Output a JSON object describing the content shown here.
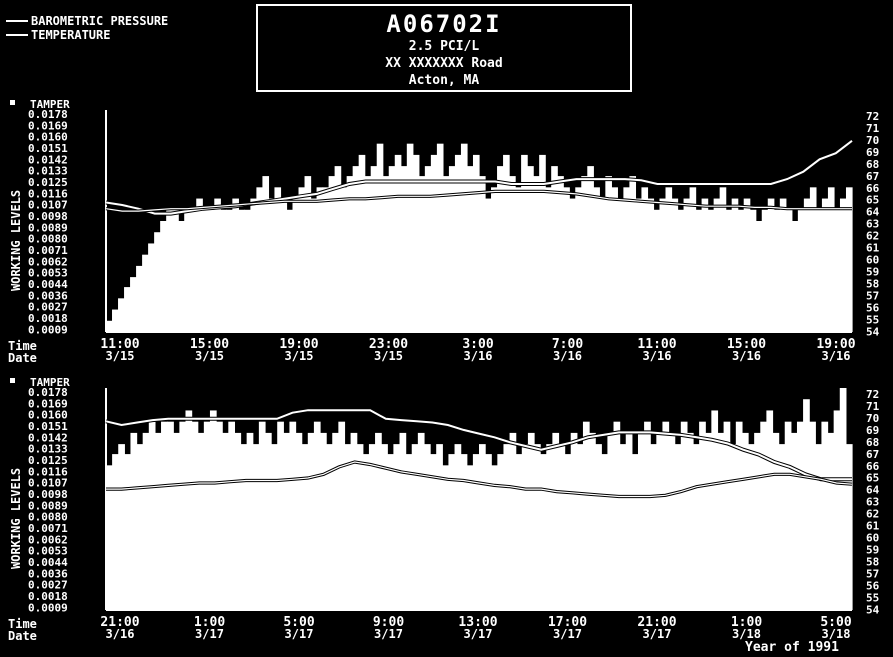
{
  "legend": {
    "items": [
      "BAROMETRIC PRESSURE",
      "TEMPERATURE"
    ]
  },
  "header": {
    "id": "A06702I",
    "concentration": "2.5 PCI/L",
    "address": "XX XXXXXXX Road",
    "location": "Acton, MA"
  },
  "footer": {
    "year": "Year of 1991"
  },
  "chart_data": [
    {
      "type": "bar",
      "tamper_label": "TAMPER",
      "ylabel": "WORKING LEVELS",
      "y_ticks": [
        "0.0178",
        "0.0169",
        "0.0160",
        "0.0151",
        "0.0142",
        "0.0133",
        "0.0125",
        "0.0116",
        "0.0107",
        "0.0098",
        "0.0089",
        "0.0080",
        "0.0071",
        "0.0062",
        "0.0053",
        "0.0044",
        "0.0036",
        "0.0027",
        "0.0018",
        "0.0009"
      ],
      "right_ticks": [
        "72",
        "71",
        "70",
        "69",
        "68",
        "67",
        "66",
        "65",
        "64",
        "63",
        "62",
        "61",
        "60",
        "59",
        "58",
        "57",
        "56",
        "55",
        "54"
      ],
      "row_labels": [
        "Time",
        "Date"
      ],
      "x_times": [
        "11:00",
        "15:00",
        "19:00",
        "23:00",
        "3:00",
        "7:00",
        "11:00",
        "15:00",
        "19:00"
      ],
      "x_dates": [
        "3/15",
        "3/15",
        "3/15",
        "3/15",
        "3/16",
        "3/16",
        "3/16",
        "3/16",
        "3/16"
      ],
      "ylim": [
        0,
        0.0178
      ],
      "working_levels": [
        0.0009,
        0.0018,
        0.0027,
        0.0036,
        0.0044,
        0.0053,
        0.0062,
        0.0071,
        0.008,
        0.0089,
        0.0098,
        0.0098,
        0.0089,
        0.0098,
        0.0098,
        0.0107,
        0.0098,
        0.0098,
        0.0107,
        0.0098,
        0.0098,
        0.0107,
        0.0098,
        0.0098,
        0.0107,
        0.0116,
        0.0125,
        0.0107,
        0.0116,
        0.0107,
        0.0098,
        0.0107,
        0.0116,
        0.0125,
        0.0107,
        0.0116,
        0.0116,
        0.0125,
        0.0133,
        0.0116,
        0.0125,
        0.0133,
        0.0142,
        0.0125,
        0.0133,
        0.0151,
        0.0125,
        0.0133,
        0.0142,
        0.0133,
        0.0151,
        0.0142,
        0.0125,
        0.0133,
        0.0142,
        0.0151,
        0.0125,
        0.0133,
        0.0142,
        0.0151,
        0.0133,
        0.0142,
        0.0125,
        0.0107,
        0.0116,
        0.0133,
        0.0142,
        0.0125,
        0.0116,
        0.0142,
        0.0133,
        0.0125,
        0.0142,
        0.0116,
        0.0133,
        0.0125,
        0.0116,
        0.0107,
        0.0116,
        0.0125,
        0.0133,
        0.0116,
        0.0107,
        0.0125,
        0.0116,
        0.0107,
        0.0116,
        0.0125,
        0.0107,
        0.0116,
        0.0107,
        0.0098,
        0.0107,
        0.0116,
        0.0107,
        0.0098,
        0.0107,
        0.0116,
        0.0098,
        0.0107,
        0.0098,
        0.0107,
        0.0116,
        0.0098,
        0.0107,
        0.0098,
        0.0107,
        0.0098,
        0.0089,
        0.0098,
        0.0107,
        0.0098,
        0.0107,
        0.0098,
        0.0089,
        0.0098,
        0.0107,
        0.0116,
        0.0098,
        0.0107,
        0.0116,
        0.0098,
        0.0107,
        0.0116
      ],
      "barometric_pressure": [
        64.5,
        64.3,
        64.0,
        63.6,
        63.6,
        63.8,
        64.0,
        64.1,
        64.2,
        64.4,
        64.6,
        64.8,
        65.0,
        65.2,
        65.6,
        66.0,
        66.2,
        66.2,
        66.2,
        66.2,
        66.2,
        66.2,
        66.2,
        66.2,
        66.2,
        66.0,
        66.0,
        66.0,
        66.2,
        66.4,
        66.4,
        66.4,
        66.4,
        66.3,
        66.0,
        66.0,
        66.0,
        66.0,
        66.0,
        66.0,
        66.0,
        66.0,
        66.4,
        67.0,
        68.0,
        68.5,
        69.5
      ],
      "temperature": [
        64.0,
        63.8,
        63.8,
        63.9,
        64.0,
        64.0,
        64.1,
        64.2,
        64.3,
        64.4,
        64.5,
        64.6,
        64.6,
        64.6,
        64.7,
        64.8,
        64.8,
        64.9,
        65.0,
        65.0,
        65.0,
        65.1,
        65.2,
        65.3,
        65.4,
        65.4,
        65.4,
        65.4,
        65.3,
        65.2,
        65.0,
        64.8,
        64.7,
        64.6,
        64.5,
        64.4,
        64.3,
        64.2,
        64.2,
        64.2,
        64.1,
        64.1,
        64.0,
        64.0,
        64.0,
        64.0,
        64.0
      ]
    },
    {
      "type": "bar",
      "tamper_label": "TAMPER",
      "ylabel": "WORKING LEVELS",
      "y_ticks": [
        "0.0178",
        "0.0169",
        "0.0160",
        "0.0151",
        "0.0142",
        "0.0133",
        "0.0125",
        "0.0116",
        "0.0107",
        "0.0098",
        "0.0089",
        "0.0080",
        "0.0071",
        "0.0062",
        "0.0053",
        "0.0044",
        "0.0036",
        "0.0027",
        "0.0018",
        "0.0009"
      ],
      "right_ticks": [
        "72",
        "71",
        "70",
        "69",
        "68",
        "67",
        "66",
        "65",
        "64",
        "63",
        "62",
        "61",
        "60",
        "59",
        "58",
        "57",
        "56",
        "55",
        "54"
      ],
      "row_labels": [
        "Time",
        "Date"
      ],
      "x_times": [
        "21:00",
        "1:00",
        "5:00",
        "9:00",
        "13:00",
        "17:00",
        "21:00",
        "1:00",
        "5:00"
      ],
      "x_dates": [
        "3/16",
        "3/17",
        "3/17",
        "3/17",
        "3/17",
        "3/17",
        "3/17",
        "3/18",
        "3/18"
      ],
      "ylim": [
        0,
        0.0178
      ],
      "working_levels": [
        0.0116,
        0.0125,
        0.0133,
        0.0125,
        0.0142,
        0.0133,
        0.0142,
        0.0151,
        0.0142,
        0.0151,
        0.0151,
        0.0142,
        0.0151,
        0.016,
        0.0151,
        0.0142,
        0.0151,
        0.016,
        0.0151,
        0.0142,
        0.0151,
        0.0142,
        0.0133,
        0.0142,
        0.0133,
        0.0151,
        0.0142,
        0.0133,
        0.0151,
        0.0142,
        0.0151,
        0.0142,
        0.0133,
        0.0142,
        0.0151,
        0.0142,
        0.0133,
        0.0142,
        0.0151,
        0.0133,
        0.0142,
        0.0133,
        0.0125,
        0.0133,
        0.0142,
        0.0133,
        0.0125,
        0.0133,
        0.0142,
        0.0125,
        0.0133,
        0.0142,
        0.0133,
        0.0125,
        0.0133,
        0.0116,
        0.0125,
        0.0133,
        0.0125,
        0.0116,
        0.0125,
        0.0133,
        0.0125,
        0.0116,
        0.0125,
        0.0133,
        0.0142,
        0.0125,
        0.0133,
        0.0142,
        0.0133,
        0.0125,
        0.0133,
        0.0142,
        0.0133,
        0.0125,
        0.0142,
        0.0133,
        0.0151,
        0.0142,
        0.0133,
        0.0125,
        0.0142,
        0.0151,
        0.0133,
        0.0142,
        0.0125,
        0.0142,
        0.0151,
        0.0133,
        0.0142,
        0.0151,
        0.0142,
        0.0133,
        0.0151,
        0.0142,
        0.0133,
        0.0151,
        0.0142,
        0.016,
        0.0142,
        0.0151,
        0.0133,
        0.0151,
        0.0142,
        0.0133,
        0.0142,
        0.0151,
        0.016,
        0.0142,
        0.0133,
        0.0151,
        0.0142,
        0.0151,
        0.0169,
        0.0151,
        0.0133,
        0.0151,
        0.0142,
        0.016,
        0.0178,
        0.0133
      ],
      "barometric_pressure": [
        69.3,
        69.0,
        69.2,
        69.4,
        69.5,
        69.5,
        69.5,
        69.5,
        69.5,
        69.5,
        69.5,
        69.5,
        70.0,
        70.2,
        70.2,
        70.2,
        70.2,
        70.2,
        69.5,
        69.4,
        69.3,
        69.2,
        69.0,
        68.6,
        68.3,
        68.0,
        67.6,
        67.3,
        67.0,
        67.3,
        67.6,
        68.0,
        68.2,
        68.4,
        68.4,
        68.4,
        68.3,
        68.2,
        68.0,
        67.8,
        67.5,
        67.0,
        66.6,
        66.0,
        65.6,
        65.0,
        64.6,
        64.6,
        64.6
      ],
      "temperature": [
        63.8,
        63.8,
        63.9,
        64.0,
        64.1,
        64.2,
        64.3,
        64.3,
        64.4,
        64.5,
        64.5,
        64.5,
        64.6,
        64.7,
        65.0,
        65.6,
        66.0,
        65.8,
        65.5,
        65.2,
        65.0,
        64.8,
        64.6,
        64.5,
        64.3,
        64.1,
        64.0,
        63.8,
        63.8,
        63.6,
        63.5,
        63.4,
        63.3,
        63.2,
        63.2,
        63.2,
        63.3,
        63.6,
        64.0,
        64.2,
        64.4,
        64.6,
        64.8,
        65.0,
        65.0,
        64.8,
        64.6,
        64.3,
        64.2
      ]
    }
  ]
}
